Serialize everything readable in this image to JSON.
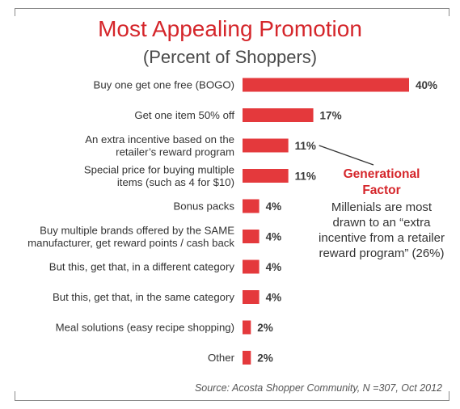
{
  "chart_data": {
    "type": "bar",
    "orientation": "horizontal",
    "title": "Most Appealing Promotion",
    "subtitle": "(Percent of Shoppers)",
    "categories": [
      [
        "Buy one get one free (BOGO)"
      ],
      [
        "Get one item 50% off"
      ],
      [
        "An extra incentive based on the",
        "retailer’s reward program"
      ],
      [
        "Special price for buying multiple",
        "items (such as 4 for $10)"
      ],
      [
        "Bonus packs"
      ],
      [
        "Buy multiple brands offered by the SAME",
        "manufacturer, get reward points / cash back"
      ],
      [
        "But this, get that, in a different category"
      ],
      [
        "But this, get that, in the same category"
      ],
      [
        "Meal solutions (easy recipe shopping)"
      ],
      [
        "Other"
      ]
    ],
    "values": [
      40,
      17,
      11,
      11,
      4,
      4,
      4,
      4,
      2,
      2
    ],
    "value_labels": [
      "40%",
      "17%",
      "11%",
      "11%",
      "4%",
      "4%",
      "4%",
      "4%",
      "2%",
      "2%"
    ],
    "bar_color": "#e4393c",
    "xlim": [
      0,
      40
    ],
    "grid": false,
    "axes_visible": false,
    "annotation": {
      "title": "Generational Factor",
      "text": "Millenials are most drawn to an “extra incentive from a retailer reward program” (26%)",
      "points_to_category_index": 2
    },
    "source": "Source: Acosta Shopper Community, N =307, Oct 2012"
  },
  "colors": {
    "accent": "#d5262b",
    "bar": "#e4393c",
    "text": "#333333",
    "frame": "#8a8a8a"
  }
}
